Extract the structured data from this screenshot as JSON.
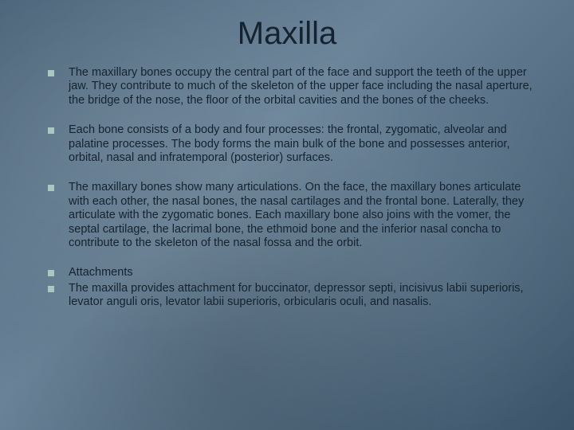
{
  "slide": {
    "title": "Maxilla",
    "title_color": "#14232f",
    "title_fontsize": 40,
    "background_base": "#546f84",
    "bullet_marker_color": "#a8c8c0",
    "bullet_marker_size": 8,
    "body_text_color": "#14232f",
    "body_fontsize": 14.5,
    "body_lineheight": 1.2,
    "bullets": [
      {
        "text": "The maxillary bones occupy the central part of the face and support the teeth of the upper jaw. They contribute to much of the skeleton of the upper face including the nasal aperture, the bridge of the nose, the floor of the orbital cavities and the bones of the cheeks.",
        "spacing_after": "normal"
      },
      {
        "text": "Each bone consists of a body and four processes: the frontal, zygomatic, alveolar and palatine processes. The body forms the main bulk of the bone and possesses anterior, orbital, nasal and infratemporal (posterior) surfaces.",
        "spacing_after": "normal"
      },
      {
        "text": "The maxillary bones show many articulations. On the face, the maxillary bones articulate with each other, the nasal bones, the nasal cartilages and the frontal bone. Laterally, they articulate with the zygomatic bones. Each maxillary bone also joins with the vomer, the septal cartilage, the lacrimal bone, the ethmoid bone and the inferior nasal concha to contribute to the skeleton of the nasal fossa and the orbit.",
        "spacing_after": "normal"
      },
      {
        "text": "Attachments",
        "spacing_after": "tight"
      },
      {
        "text": "The maxilla provides attachment for buccinator, depressor septi, incisivus labii superioris, levator anguli oris, levator labii superioris, orbicularis oculi, and nasalis.",
        "spacing_after": "normal"
      }
    ]
  }
}
